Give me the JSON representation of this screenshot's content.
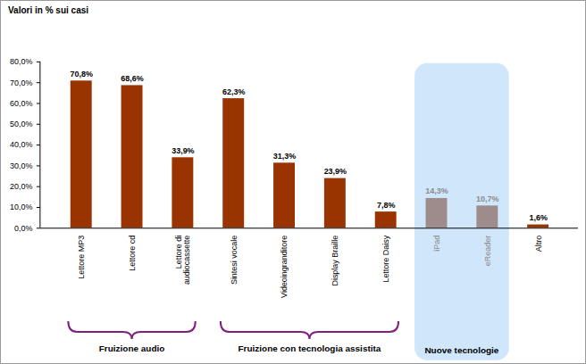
{
  "chart_data": {
    "type": "bar",
    "title": "Valori in % sui casi",
    "categories": [
      "Lettore MP3",
      "Lettore cd",
      "Lettore di audiocassette",
      "Sintesi vocale",
      "Videoingranditore",
      "Display Braille",
      "Lettore Daisy",
      "iPad",
      "eReader",
      "Altro"
    ],
    "values": [
      70.8,
      68.6,
      33.9,
      62.3,
      31.3,
      23.9,
      7.8,
      14.3,
      10.7,
      1.6
    ],
    "value_labels": [
      "70,8%",
      "68,6%",
      "33,9%",
      "62,3%",
      "31,3%",
      "23,9%",
      "7,8%",
      "14,3%",
      "10,7%",
      "1,6%"
    ],
    "color": "#993300",
    "colors": [
      "#993300",
      "#993300",
      "#993300",
      "#993300",
      "#993300",
      "#993300",
      "#993300",
      "#9e8c8c",
      "#9e8c8c",
      "#993300"
    ],
    "ylim": [
      0,
      80
    ],
    "yticks": [
      {
        "value": 0,
        "label": "0,0%"
      },
      {
        "value": 10,
        "label": "10,0%"
      },
      {
        "value": 20,
        "label": "20,0%"
      },
      {
        "value": 30,
        "label": "30,0%"
      },
      {
        "value": 40,
        "label": "40,0%"
      },
      {
        "value": 50,
        "label": "50,0%"
      },
      {
        "value": 60,
        "label": "60,0%"
      },
      {
        "value": 70,
        "label": "70,0%"
      },
      {
        "value": 80,
        "label": "80,0%"
      }
    ],
    "grid": false,
    "data_labels": true,
    "annotations": [
      {
        "text": "Fruizione audio",
        "from": "Lettore MP3",
        "to": "Lettore di audiocassette"
      },
      {
        "text": "Fruizione con tecnologia assistita",
        "from": "Sintesi vocale",
        "to": "Lettore Daisy"
      },
      {
        "text": "Nuove tecnologie",
        "from": "iPad",
        "to": "eReader"
      }
    ]
  }
}
